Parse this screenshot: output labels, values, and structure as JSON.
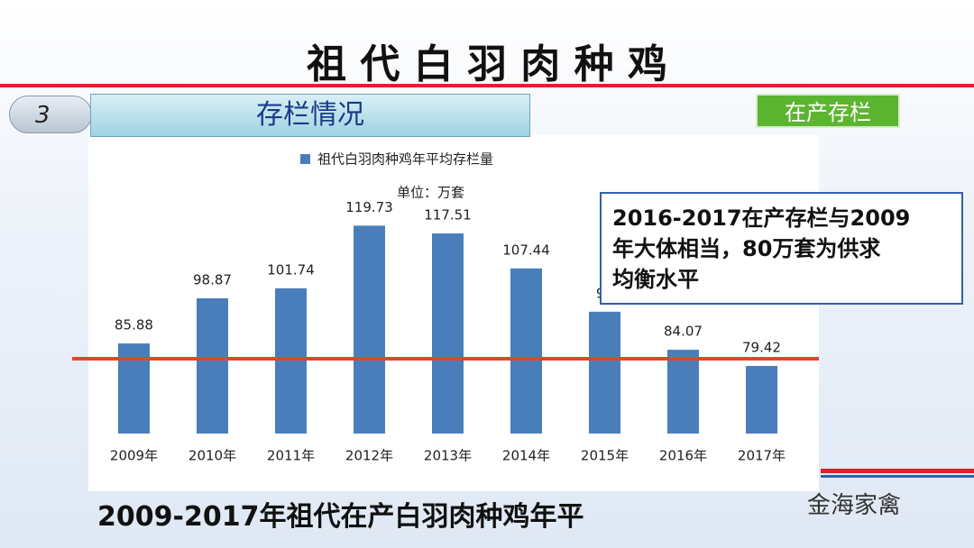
{
  "slide": {
    "title": "祖 代 白 羽 肉 种 鸡",
    "section_number": "3",
    "section_title": "存栏情况",
    "tag": "在产存栏",
    "callout": [
      "2016-2017在产存栏与2009",
      "年大体相当，80万套为供求",
      "均衡水平"
    ],
    "caption": "2009-2017年祖代在产白羽肉种鸡年平",
    "watermark": "金海家禽"
  },
  "chart_data": {
    "type": "bar",
    "legend": "祖代白羽肉种鸡年平均存栏量",
    "unit": "单位：万套",
    "categories": [
      "2009年",
      "2010年",
      "2011年",
      "2012年",
      "2013年",
      "2014年",
      "2015年",
      "2016年",
      "2017年"
    ],
    "values": [
      85.88,
      98.87,
      101.74,
      119.73,
      117.51,
      107.44,
      95,
      84.07,
      79.42
    ],
    "color": "#4a7ebb",
    "ylim": [
      60,
      125
    ],
    "reference_line": 81.5,
    "reference_color": "#e8422a"
  }
}
